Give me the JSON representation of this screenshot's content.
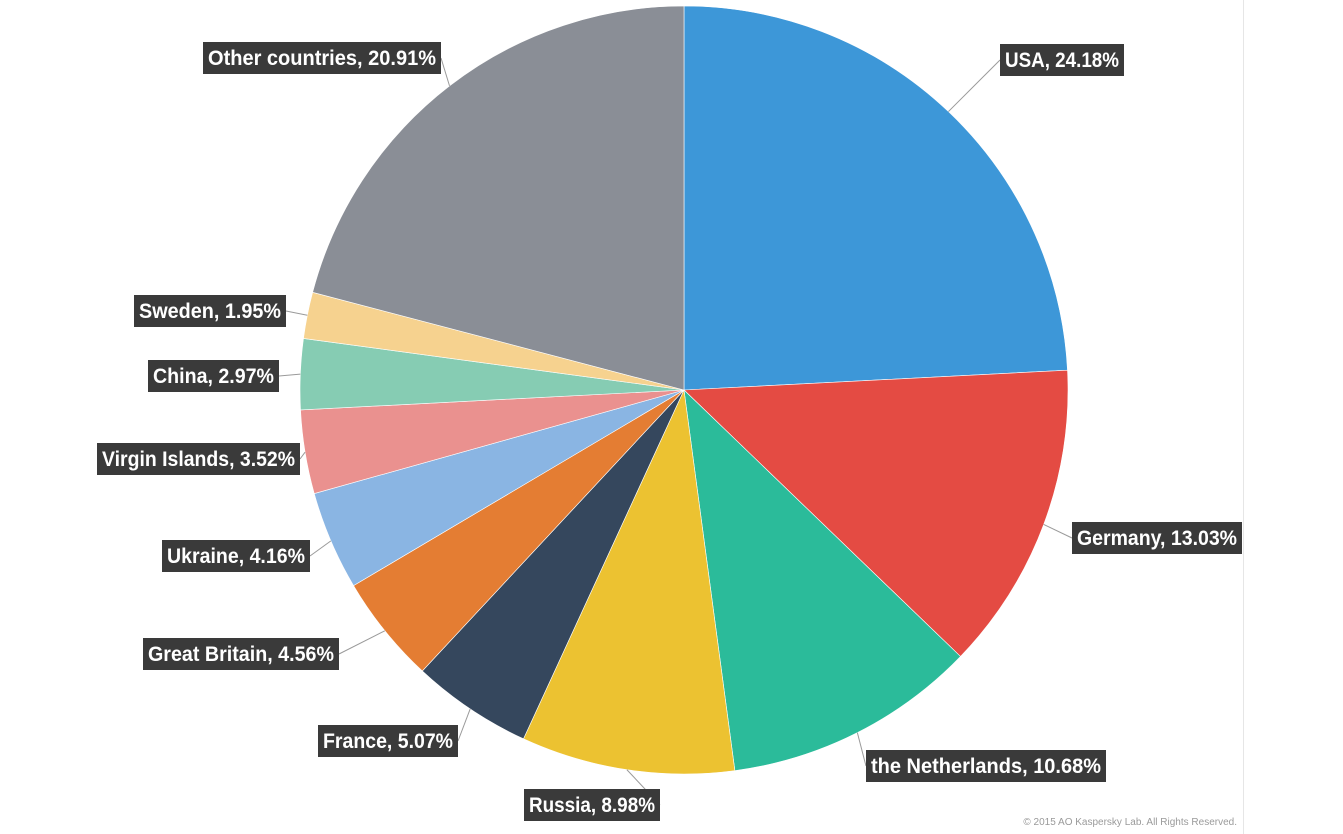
{
  "chart_data": {
    "type": "pie",
    "title": "",
    "slices": [
      {
        "label": "USA, 24.18%",
        "name": "USA",
        "value": 24.18,
        "color": "#3d97d8"
      },
      {
        "label": "Germany, 13.03%",
        "name": "Germany",
        "value": 13.03,
        "color": "#e44b43"
      },
      {
        "label": "the Netherlands, 10.68%",
        "name": "the Netherlands",
        "value": 10.68,
        "color": "#2bbb9a"
      },
      {
        "label": "Russia, 8.98%",
        "name": "Russia",
        "value": 8.98,
        "color": "#ecc231"
      },
      {
        "label": "France, 5.07%",
        "name": "France",
        "value": 5.07,
        "color": "#35475d"
      },
      {
        "label": "Great Britain, 4.56%",
        "name": "Great Britain",
        "value": 4.56,
        "color": "#e47d33"
      },
      {
        "label": "Ukraine, 4.16%",
        "name": "Ukraine",
        "value": 4.16,
        "color": "#8ab5e3"
      },
      {
        "label": "Virgin Islands, 3.52%",
        "name": "Virgin Islands",
        "value": 3.52,
        "color": "#ea918f"
      },
      {
        "label": "China, 2.97%",
        "name": "China",
        "value": 2.97,
        "color": "#86ccb3"
      },
      {
        "label": "Sweden, 1.95%",
        "name": "Sweden",
        "value": 1.95,
        "color": "#f6d28f"
      },
      {
        "label": "Other  countries, 20.91%",
        "name": "Other countries",
        "value": 20.91,
        "color": "#8a8e96"
      }
    ],
    "start": "12 o'clock",
    "direction": "clockwise",
    "legend": "none"
  },
  "copyright": "© 2015 AO Kaspersky Lab. All Rights Reserved."
}
